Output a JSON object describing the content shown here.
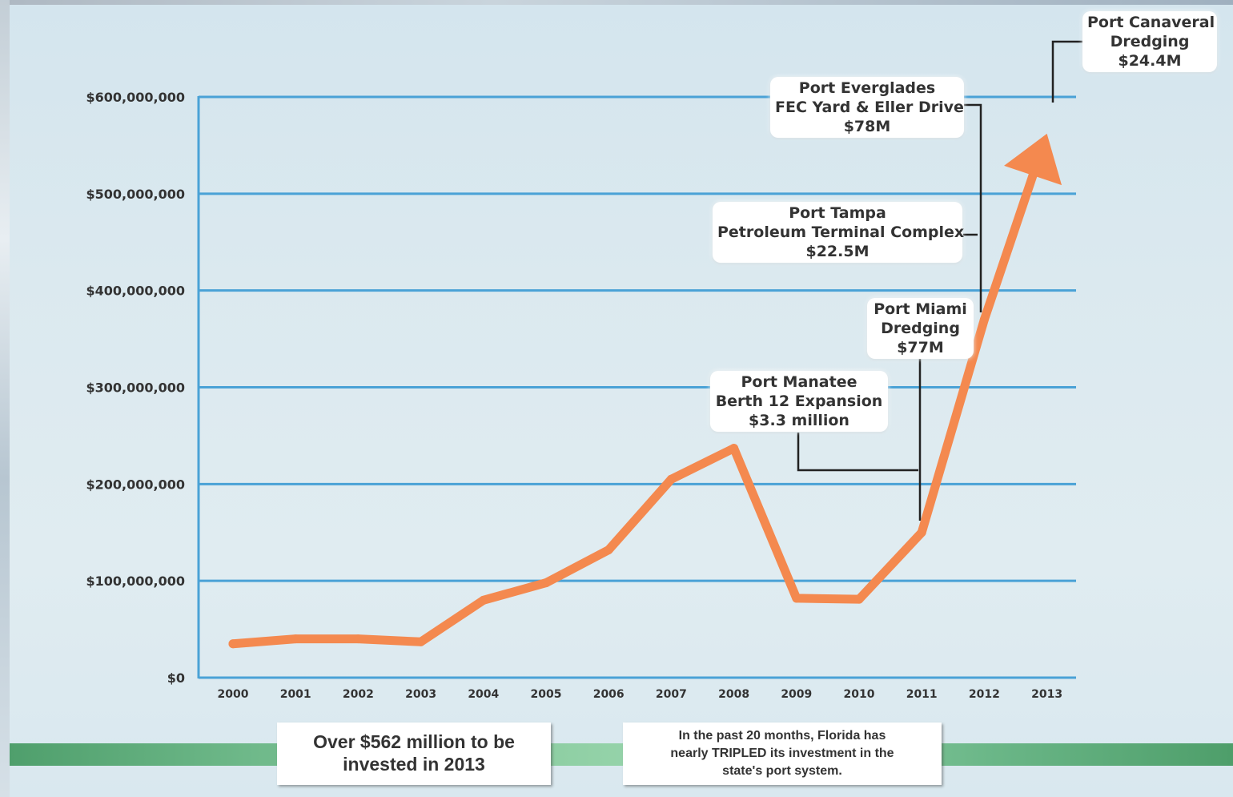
{
  "chart_data": {
    "type": "line",
    "x": [
      "2000",
      "2001",
      "2002",
      "2003",
      "2004",
      "2005",
      "2006",
      "2007",
      "2008",
      "2009",
      "2010",
      "2011",
      "2012",
      "2013"
    ],
    "series": [
      {
        "values": [
          35000000,
          40000000,
          40000000,
          37000000,
          80000000,
          98000000,
          132000000,
          205000000,
          237000000,
          82000000,
          81000000,
          150000000,
          370000000,
          562000000
        ]
      }
    ],
    "ylim": [
      0,
      600000000
    ],
    "yticks": [
      0,
      100000000,
      200000000,
      300000000,
      400000000,
      500000000,
      600000000
    ],
    "ytick_labels": [
      "$0",
      "$100,000,000",
      "$200,000,000",
      "$300,000,000",
      "$400,000,000",
      "$500,000,000",
      "$600,000,000"
    ],
    "grid": true,
    "line_color": "#f4894f",
    "grid_color": "#4aa2d6",
    "annotations": [
      {
        "lines": [
          "Port Canaveral",
          "Dredging",
          "$24.4M"
        ],
        "target": "2013"
      },
      {
        "lines": [
          "Port Everglades",
          "FEC Yard & Eller Drive",
          "$78M"
        ],
        "target": "2012"
      },
      {
        "lines": [
          "Port Tampa",
          "Petroleum Terminal Complex",
          "$22.5M"
        ],
        "target": "2012"
      },
      {
        "lines": [
          "Port Miami",
          "Dredging",
          "$77M"
        ],
        "target": "2011"
      },
      {
        "lines": [
          "Port Manatee",
          "Berth 12 Expansion",
          "$3.3 million"
        ],
        "target": "2011"
      }
    ]
  },
  "footer": {
    "left_lines": [
      "Over $562 million to be",
      "invested in 2013"
    ],
    "right_lines": [
      "In the past 20 months, Florida has",
      "nearly TRIPLED its investment in the",
      "state's port system."
    ]
  },
  "colors": {
    "band": "#6fb98a",
    "axis": "#4aa2d6",
    "line": "#f4894f",
    "connector": "#222222"
  }
}
